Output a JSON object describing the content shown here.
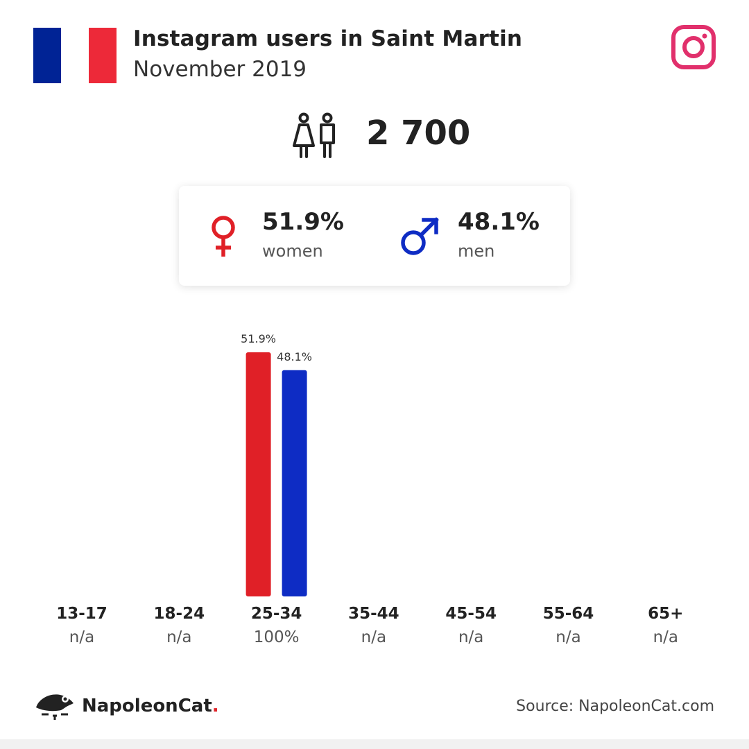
{
  "header": {
    "title": "Instagram users in Saint Martin",
    "subtitle": "November 2019"
  },
  "flag": {
    "colors": [
      "#002395",
      "#ffffff",
      "#ED2939"
    ]
  },
  "icons": {
    "brand": "instagram-icon",
    "users": "users-icon",
    "female": "female-icon",
    "male": "male-icon",
    "logo": "napoleoncat-logo-icon"
  },
  "colors": {
    "women": "#E02027",
    "men": "#0E2CC4",
    "instagram": "#E1306C"
  },
  "total": {
    "value": "2 700"
  },
  "gender": {
    "women": {
      "pct": "51.9%",
      "label": "women"
    },
    "men": {
      "pct": "48.1%",
      "label": "men"
    }
  },
  "chart_data": {
    "type": "bar",
    "categories": [
      "13-17",
      "18-24",
      "25-34",
      "35-44",
      "45-54",
      "55-64",
      "65+"
    ],
    "category_values": [
      "n/a",
      "n/a",
      "100%",
      "n/a",
      "n/a",
      "n/a",
      "n/a"
    ],
    "series": [
      {
        "name": "women",
        "values": [
          null,
          null,
          51.9,
          null,
          null,
          null,
          null
        ],
        "labels": [
          "",
          "",
          "51.9%",
          "",
          "",
          "",
          ""
        ]
      },
      {
        "name": "men",
        "values": [
          null,
          null,
          48.1,
          null,
          null,
          null,
          null
        ],
        "labels": [
          "",
          "",
          "48.1%",
          "",
          "",
          "",
          ""
        ]
      }
    ],
    "ylim": [
      0,
      51.9
    ],
    "grid": false
  },
  "footer": {
    "logo_text": "NapoleonCat",
    "logo_dot": ".",
    "source": "Source: NapoleonCat.com"
  }
}
